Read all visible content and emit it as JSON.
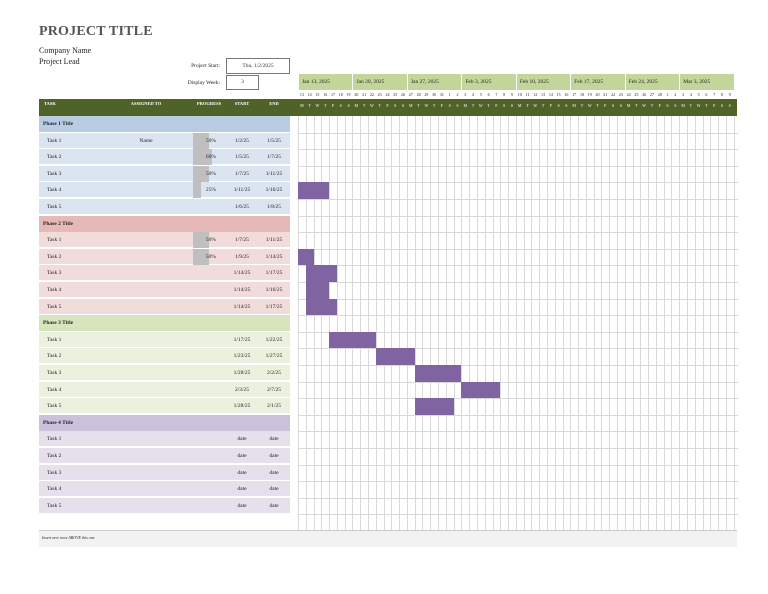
{
  "header": {
    "title": "PROJECT TITLE",
    "company": "Company Name",
    "lead": "Project Lead",
    "project_start_label": "Project Start:",
    "project_start_value": "Thu, 1/2/2025",
    "display_week_label": "Display Week:",
    "display_week_value": "3"
  },
  "timeline": {
    "weeks": [
      "Jan 13, 2025",
      "Jan 20, 2025",
      "Jan 27, 2025",
      "Feb 3, 2025",
      "Feb 10, 2025",
      "Feb 17, 2025",
      "Feb 24, 2025",
      "Mar 3, 2025"
    ],
    "day_numbers": [
      "13",
      "14",
      "15",
      "16",
      "17",
      "18",
      "19",
      "20",
      "21",
      "22",
      "23",
      "24",
      "25",
      "26",
      "27",
      "28",
      "29",
      "30",
      "31",
      "1",
      "2",
      "3",
      "4",
      "5",
      "6",
      "7",
      "8",
      "9",
      "10",
      "11",
      "12",
      "13",
      "14",
      "15",
      "16",
      "17",
      "18",
      "19",
      "20",
      "21",
      "22",
      "23",
      "24",
      "25",
      "26",
      "27",
      "28",
      "1",
      "2",
      "3",
      "4",
      "5",
      "6",
      "7",
      "8",
      "9"
    ],
    "day_letters": [
      "M",
      "T",
      "W",
      "T",
      "F",
      "S",
      "S"
    ]
  },
  "columns": {
    "task": "TASK",
    "assigned": "ASSIGNED TO",
    "progress": "PROGRESS",
    "start": "START",
    "end": "END"
  },
  "phases": [
    {
      "title": "Phase 1 Title",
      "bg": "#dbe5f1",
      "header_bg": "#b8cce4",
      "tasks": [
        {
          "name": "Task 1",
          "assigned": "Name",
          "progress": "50%",
          "progress_value": 0.5,
          "start": "1/2/25",
          "end": "1/5/25"
        },
        {
          "name": "Task 2",
          "assigned": "",
          "progress": "60%",
          "progress_value": 0.6,
          "start": "1/5/25",
          "end": "1/7/25"
        },
        {
          "name": "Task 3",
          "assigned": "",
          "progress": "50%",
          "progress_value": 0.5,
          "start": "1/7/25",
          "end": "1/11/25"
        },
        {
          "name": "Task 4",
          "assigned": "",
          "progress": "25%",
          "progress_value": 0.25,
          "start": "1/11/25",
          "end": "1/16/25"
        },
        {
          "name": "Task 5",
          "assigned": "",
          "progress": "",
          "progress_value": 0,
          "start": "1/6/25",
          "end": "1/8/25"
        }
      ]
    },
    {
      "title": "Phase 2 Title",
      "bg": "#f2dcdb",
      "header_bg": "#e6b9b8",
      "tasks": [
        {
          "name": "Task 1",
          "assigned": "",
          "progress": "50%",
          "progress_value": 0.5,
          "start": "1/7/25",
          "end": "1/11/25"
        },
        {
          "name": "Task 2",
          "assigned": "",
          "progress": "50%",
          "progress_value": 0.5,
          "start": "1/9/25",
          "end": "1/14/25"
        },
        {
          "name": "Task 3",
          "assigned": "",
          "progress": "",
          "progress_value": 0,
          "start": "1/14/25",
          "end": "1/17/25"
        },
        {
          "name": "Task 4",
          "assigned": "",
          "progress": "",
          "progress_value": 0,
          "start": "1/14/25",
          "end": "1/16/25"
        },
        {
          "name": "Task 5",
          "assigned": "",
          "progress": "",
          "progress_value": 0,
          "start": "1/14/25",
          "end": "1/17/25"
        }
      ]
    },
    {
      "title": "Phase 3 Title",
      "bg": "#ebf1de",
      "header_bg": "#d7e4bd",
      "tasks": [
        {
          "name": "Task 1",
          "assigned": "",
          "progress": "",
          "progress_value": 0,
          "start": "1/17/25",
          "end": "1/22/25"
        },
        {
          "name": "Task 2",
          "assigned": "",
          "progress": "",
          "progress_value": 0,
          "start": "1/23/25",
          "end": "1/27/25"
        },
        {
          "name": "Task 3",
          "assigned": "",
          "progress": "",
          "progress_value": 0,
          "start": "1/28/25",
          "end": "2/2/25"
        },
        {
          "name": "Task 4",
          "assigned": "",
          "progress": "",
          "progress_value": 0,
          "start": "2/3/25",
          "end": "2/7/25"
        },
        {
          "name": "Task 5",
          "assigned": "",
          "progress": "",
          "progress_value": 0,
          "start": "1/28/25",
          "end": "2/1/25"
        }
      ]
    },
    {
      "title": "Phase 4 Title",
      "bg": "#e5e0ec",
      "header_bg": "#ccc1da",
      "tasks": [
        {
          "name": "Task 1",
          "assigned": "",
          "progress": "",
          "progress_value": 0,
          "start": "date",
          "end": "date"
        },
        {
          "name": "Task 2",
          "assigned": "",
          "progress": "",
          "progress_value": 0,
          "start": "date",
          "end": "date"
        },
        {
          "name": "Task 3",
          "assigned": "",
          "progress": "",
          "progress_value": 0,
          "start": "date",
          "end": "date"
        },
        {
          "name": "Task 4",
          "assigned": "",
          "progress": "",
          "progress_value": 0,
          "start": "date",
          "end": "date"
        },
        {
          "name": "Task 5",
          "assigned": "",
          "progress": "",
          "progress_value": 0,
          "start": "date",
          "end": "date"
        }
      ]
    }
  ],
  "gantt_bar_color": "#8064a2",
  "footer": {
    "note": "Insert new rows ABOVE this one"
  }
}
